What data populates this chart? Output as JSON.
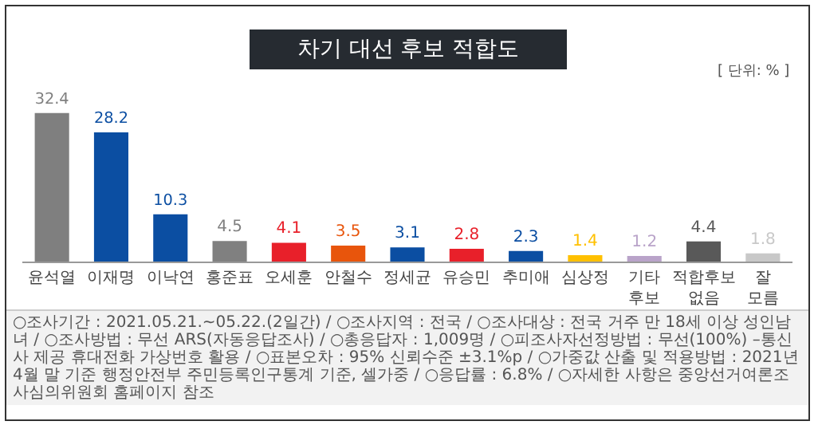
{
  "chart_data": {
    "type": "bar",
    "title": "차기 대선 후보 적합도",
    "subtitle": "[ 단위: % ]",
    "categories": [
      "윤석열",
      "이재명",
      "이낙연",
      "홍준표",
      "오세훈",
      "안철수",
      "정세균",
      "유승민",
      "추미애",
      "심상정",
      "기타 후보",
      "적합후보 없음",
      "잘 모름"
    ],
    "values": [
      32.4,
      28.2,
      10.3,
      4.5,
      4.1,
      3.5,
      3.1,
      2.8,
      2.3,
      1.4,
      1.2,
      4.4,
      1.8
    ],
    "colors": [
      "#7f7f7f",
      "#0b4ea2",
      "#0b4ea2",
      "#808080",
      "#e8202a",
      "#e8550c",
      "#0b4ea2",
      "#e8202a",
      "#0b4ea2",
      "#ffc000",
      "#b9a3c9",
      "#595959",
      "#c8c8c8"
    ],
    "data_labels": true,
    "annotations": [
      "○조사기간 : 2021.05.21.~05.22.(2일간) / ○조사지역 : 전국 / ○조사대상 : 전국 거주 만 18세 이상 성인남녀 / ○조사방법 : 무선 ARS(자동응답조사) / ○총응답자 : 1,009명 / ○피조사자선정방법 : 무선(100%) –통신사 제공 휴대전화 가상번호 활용 / ○표본오차 : 95% 신뢰수준 ±3.1%p / ○가중값 산출 및 적용방법 : 2021년 4월 말 기준 행정안전부 주민등록인구통계 기준, 셀가중 / ○응답률 : 6.8% / ○자세한 사항은 중앙선거여론조사심의위원회 홈페이지 참조"
    ]
  }
}
